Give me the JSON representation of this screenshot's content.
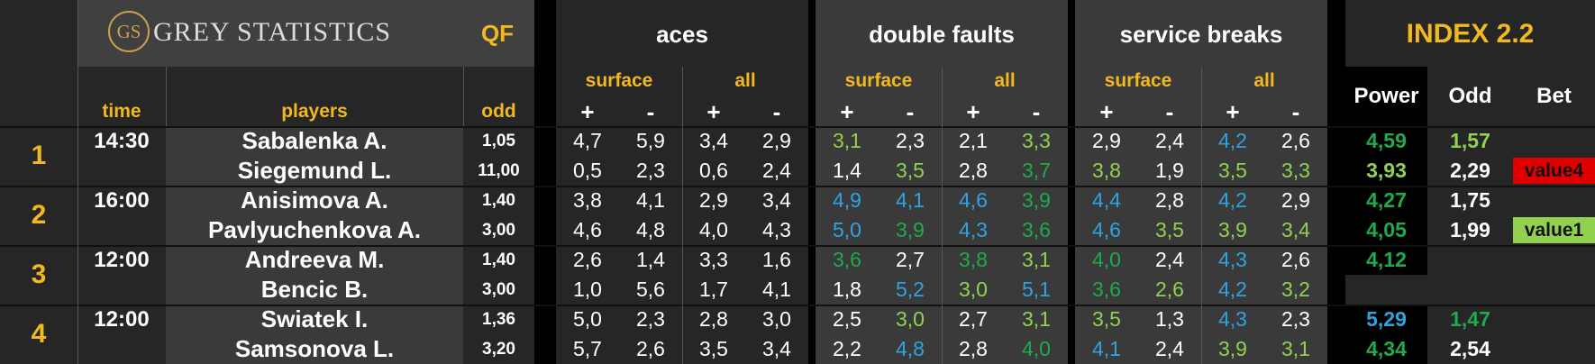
{
  "header": {
    "logo_mark": "GS",
    "logo_text": "GREY STATISTICS",
    "round": "QF",
    "groups": [
      "aces",
      "double faults",
      "service breaks"
    ],
    "index_title": "INDEX 2.2",
    "sub_surface": "surface",
    "sub_all": "all",
    "plus": "+",
    "minus": "-",
    "col_time": "time",
    "col_players": "players",
    "col_odd": "odd",
    "col_power": "Power",
    "col_index_odd": "Odd",
    "col_bet": "Bet"
  },
  "matches": [
    {
      "num": "1",
      "time": "14:30",
      "players": [
        {
          "name": "Sabalenka A.",
          "odd": "1,05",
          "stats": [
            "4,7",
            "5,9",
            "3,4",
            "2,9",
            "3,1",
            "2,3",
            "2,1",
            "3,3",
            "2,9",
            "2,4",
            "4,2",
            "2,6"
          ],
          "colors": [
            "w",
            "w",
            "w",
            "w",
            "g",
            "w",
            "w",
            "g",
            "w",
            "w",
            "b",
            "w"
          ],
          "power": "4,59",
          "power_color": "gg",
          "index_odd": "1,57",
          "index_odd_color": "g",
          "bet": ""
        },
        {
          "name": "Siegemund L.",
          "odd": "11,00",
          "stats": [
            "0,5",
            "2,3",
            "0,6",
            "2,4",
            "1,4",
            "3,5",
            "2,8",
            "3,7",
            "3,8",
            "1,9",
            "3,5",
            "3,3"
          ],
          "colors": [
            "w",
            "w",
            "w",
            "w",
            "w",
            "g",
            "w",
            "gg",
            "g",
            "w",
            "g",
            "g"
          ],
          "power": "3,93",
          "power_color": "g",
          "index_odd": "2,29",
          "index_odd_color": "w",
          "bet": "value4"
        }
      ]
    },
    {
      "num": "2",
      "time": "16:00",
      "players": [
        {
          "name": "Anisimova A.",
          "odd": "1,40",
          "stats": [
            "3,8",
            "4,1",
            "2,9",
            "3,4",
            "4,9",
            "4,1",
            "4,6",
            "3,9",
            "4,4",
            "2,8",
            "4,2",
            "2,9"
          ],
          "colors": [
            "w",
            "w",
            "w",
            "w",
            "b",
            "b",
            "b",
            "gg",
            "b",
            "w",
            "b",
            "w"
          ],
          "power": "4,27",
          "power_color": "gg",
          "index_odd": "1,75",
          "index_odd_color": "w",
          "bet": ""
        },
        {
          "name": "Pavlyuchenkova A.",
          "odd": "3,00",
          "stats": [
            "4,6",
            "4,8",
            "4,0",
            "4,3",
            "5,0",
            "3,9",
            "4,3",
            "3,6",
            "4,6",
            "3,5",
            "3,9",
            "3,4"
          ],
          "colors": [
            "w",
            "w",
            "w",
            "w",
            "b",
            "gg",
            "b",
            "gg",
            "b",
            "g",
            "g",
            "g"
          ],
          "power": "4,05",
          "power_color": "gg",
          "index_odd": "1,99",
          "index_odd_color": "w",
          "bet": "value1"
        }
      ]
    },
    {
      "num": "3",
      "time": "12:00",
      "players": [
        {
          "name": "Andreeva M.",
          "odd": "1,40",
          "stats": [
            "2,6",
            "1,4",
            "3,3",
            "1,6",
            "3,6",
            "2,7",
            "3,8",
            "3,1",
            "4,0",
            "2,4",
            "4,3",
            "2,6"
          ],
          "colors": [
            "w",
            "w",
            "w",
            "w",
            "gg",
            "w",
            "gg",
            "g",
            "gg",
            "w",
            "b",
            "w"
          ],
          "power": "4,12",
          "power_color": "gg",
          "index_odd": "",
          "index_odd_color": "w",
          "bet": ""
        },
        {
          "name": "Bencic B.",
          "odd": "3,00",
          "stats": [
            "1,0",
            "5,6",
            "1,7",
            "4,1",
            "1,8",
            "5,2",
            "3,0",
            "5,1",
            "3,6",
            "2,6",
            "4,2",
            "3,2"
          ],
          "colors": [
            "w",
            "w",
            "w",
            "w",
            "w",
            "b",
            "g",
            "b",
            "gg",
            "g",
            "b",
            "g"
          ],
          "power": "",
          "power_color": "w",
          "index_odd": "",
          "index_odd_color": "w",
          "bet": ""
        }
      ]
    },
    {
      "num": "4",
      "time": "12:00",
      "players": [
        {
          "name": "Swiatek I.",
          "odd": "1,36",
          "stats": [
            "5,0",
            "2,3",
            "2,8",
            "3,0",
            "2,5",
            "3,0",
            "2,7",
            "3,1",
            "3,5",
            "1,3",
            "4,3",
            "2,3"
          ],
          "colors": [
            "w",
            "w",
            "w",
            "w",
            "w",
            "g",
            "w",
            "g",
            "g",
            "w",
            "b",
            "w"
          ],
          "power": "5,29",
          "power_color": "b",
          "index_odd": "1,47",
          "index_odd_color": "gg",
          "bet": ""
        },
        {
          "name": "Samsonova L.",
          "odd": "3,20",
          "stats": [
            "5,7",
            "2,6",
            "3,5",
            "3,4",
            "2,2",
            "4,8",
            "2,8",
            "4,0",
            "4,1",
            "2,4",
            "3,9",
            "3,1"
          ],
          "colors": [
            "w",
            "w",
            "w",
            "w",
            "w",
            "b",
            "w",
            "gg",
            "b",
            "w",
            "g",
            "g"
          ],
          "power": "4,34",
          "power_color": "gg",
          "index_odd": "2,54",
          "index_odd_color": "w",
          "bet": ""
        }
      ]
    }
  ],
  "colors": {
    "gold": "#f1b81f",
    "green_light": "#92d050",
    "green": "#1faa4c",
    "blue": "#2fa3e0",
    "bet_red": "#e00000",
    "bet_green": "#92d050"
  }
}
